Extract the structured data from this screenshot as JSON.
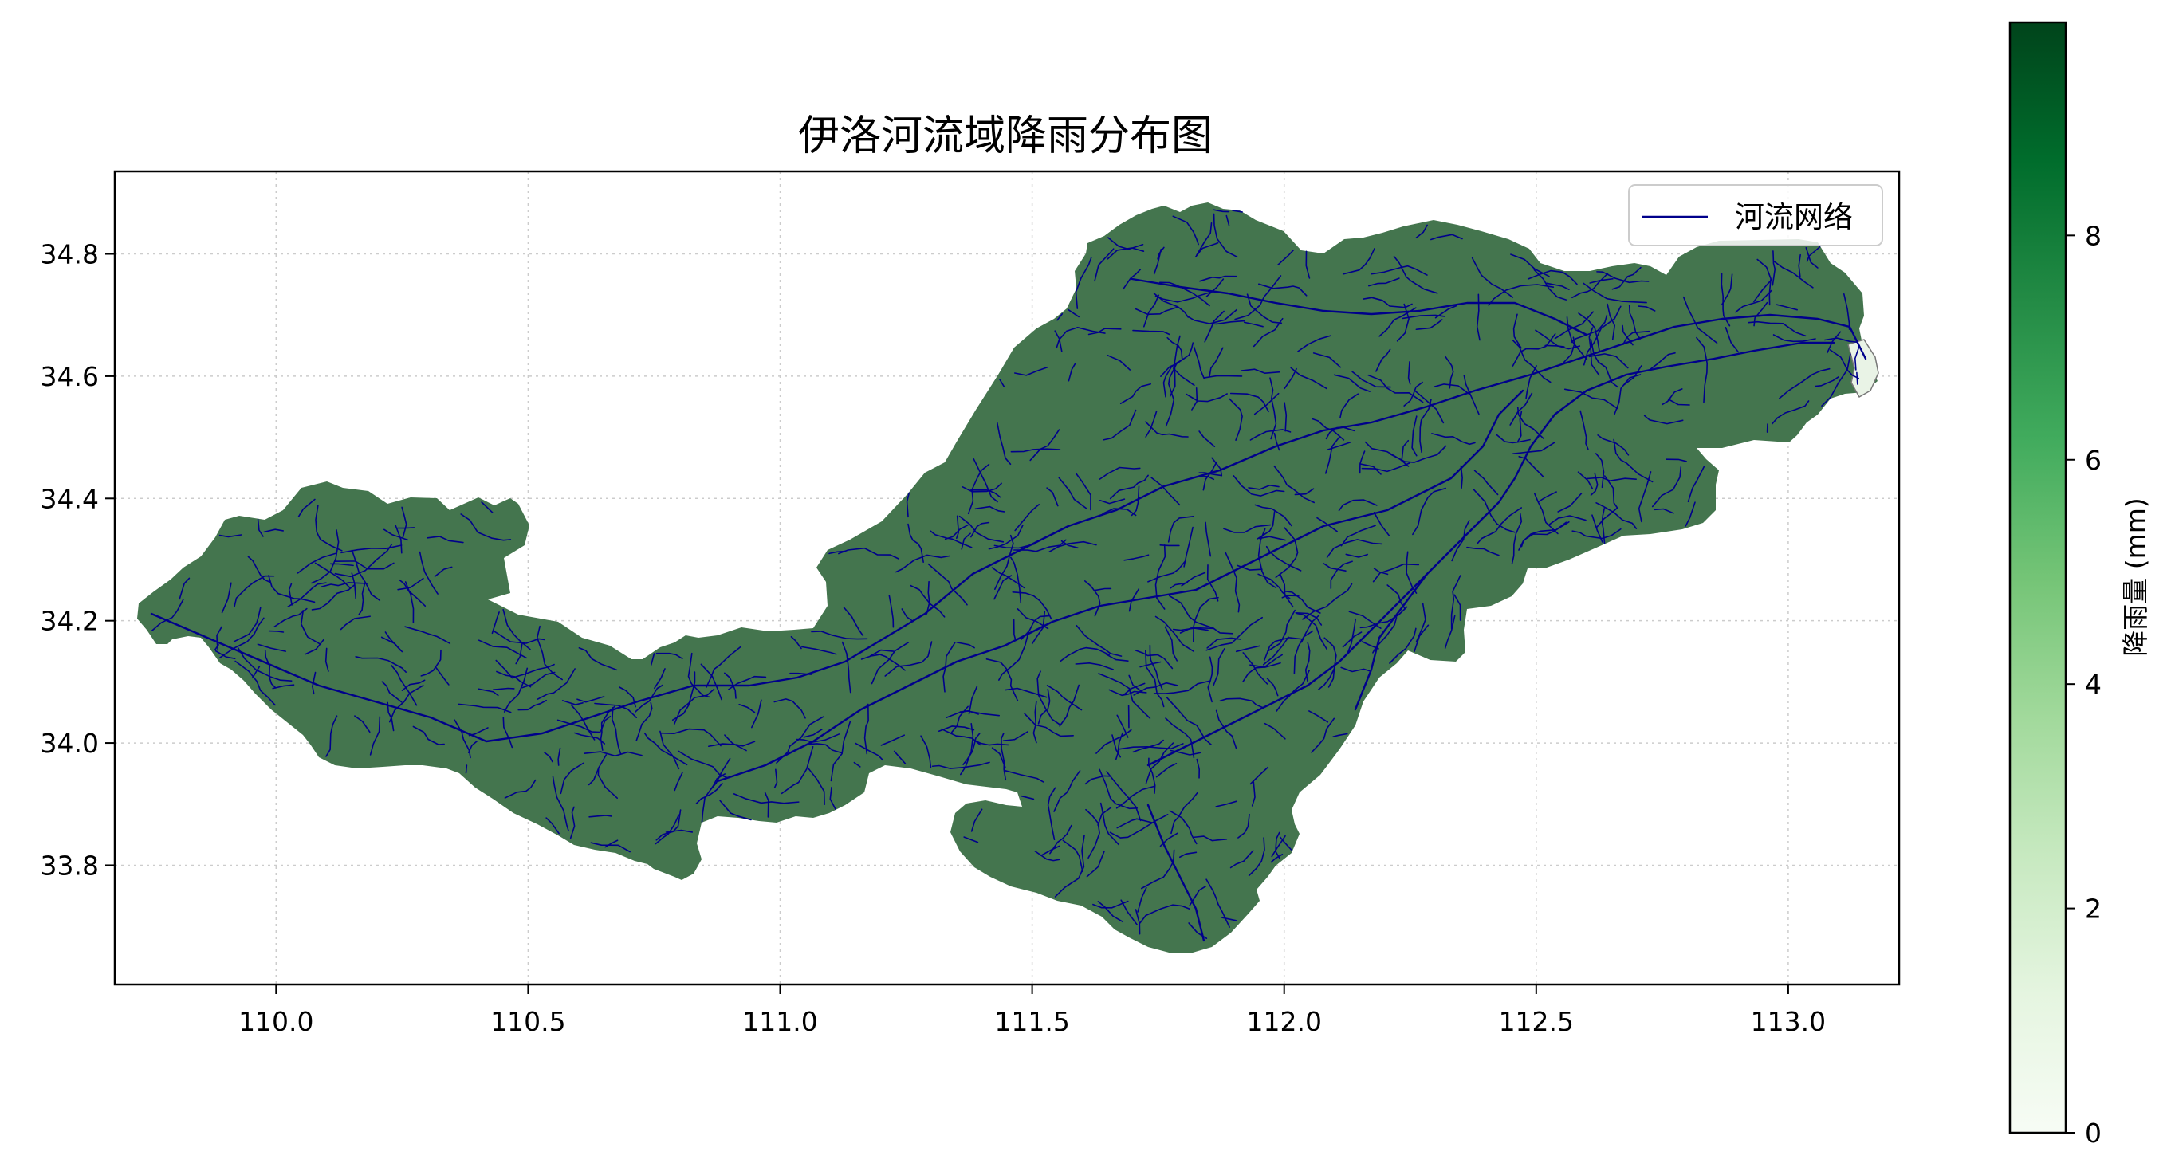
{
  "chart_data": {
    "type": "choropleth-map",
    "title": "伊洛河流域降雨分布图",
    "xlabel": "",
    "ylabel": "",
    "xlim": [
      109.68,
      113.22
    ],
    "ylim": [
      33.605,
      34.935
    ],
    "x_ticks": [
      "110.0",
      "110.5",
      "111.0",
      "111.5",
      "112.0",
      "112.5",
      "113.0"
    ],
    "y_ticks": [
      "33.8",
      "34.0",
      "34.2",
      "34.4",
      "34.6",
      "34.8"
    ],
    "grid": true,
    "legend": {
      "position": "top-right",
      "entries": [
        {
          "name": "河流网络",
          "color": "#00008b"
        }
      ]
    },
    "basin_fill_color": "#44754e",
    "river_color": "#00008b",
    "colorbar": {
      "label": "降雨量 (mm)",
      "range": [
        0,
        9.9
      ],
      "ticks": [
        "0",
        "2",
        "4",
        "6",
        "8"
      ],
      "colormap": "Greens",
      "colors": [
        "#f7fcf5",
        "#e5f5e0",
        "#c7e9c0",
        "#a1d99b",
        "#74c476",
        "#41ab5d",
        "#238b45",
        "#006d2c",
        "#00441b"
      ]
    }
  }
}
